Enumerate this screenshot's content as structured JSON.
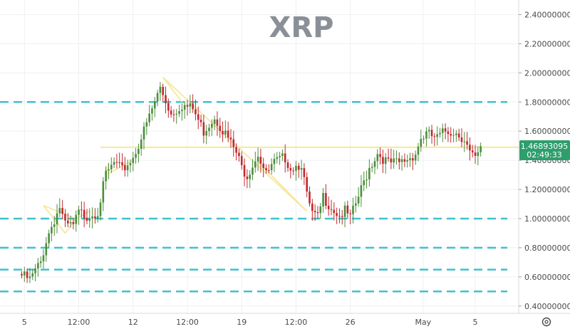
{
  "chart_data": {
    "type": "candlestick",
    "title": "XRP",
    "ylim": [
      0.35,
      2.5
    ],
    "y_ticks": [
      "2.40000000",
      "2.20000000",
      "2.00000000",
      "1.80000000",
      "1.60000000",
      "1.40000000",
      "1.20000000",
      "1.00000000",
      "0.80000000",
      "0.60000000",
      "0.40000000"
    ],
    "y_tick_values": [
      2.4,
      2.2,
      2.0,
      1.8,
      1.6,
      1.4,
      1.2,
      1.0,
      0.8,
      0.6,
      0.4
    ],
    "x_ticks": [
      {
        "label": "5",
        "t": 0.1
      },
      {
        "label": "12:00",
        "t": 1.1
      },
      {
        "label": "12",
        "t": 2.1
      },
      {
        "label": "12:00",
        "t": 3.1
      },
      {
        "label": "19",
        "t": 4.1
      },
      {
        "label": "12:00",
        "t": 5.1
      },
      {
        "label": "26",
        "t": 6.1
      },
      {
        "label": "May",
        "t": 7.44
      },
      {
        "label": "5",
        "t": 8.4
      }
    ],
    "x_range": [
      -0.35,
      9.2
    ],
    "current_price": {
      "label": "1.46893095",
      "countdown": "02:49:33",
      "value": 1.469
    },
    "horizontal_levels": [
      1.8,
      1.0,
      0.8,
      0.65,
      0.5
    ],
    "resistance_line": {
      "value": 1.49,
      "from_t": 1.5
    },
    "trendlines": [
      [
        [
          0.45,
          1.09
        ],
        [
          1.05,
          1.0
        ]
      ],
      [
        [
          0.45,
          1.09
        ],
        [
          0.85,
          0.9
        ]
      ],
      [
        [
          0.85,
          0.9
        ],
        [
          1.05,
          1.0
        ]
      ],
      [
        [
          1.05,
          1.0
        ],
        [
          1.3,
          1.05
        ]
      ],
      [
        [
          1.6,
          1.3
        ],
        [
          2.1,
          1.4
        ]
      ],
      [
        [
          1.6,
          1.3
        ],
        [
          1.65,
          1.38
        ]
      ],
      [
        [
          2.65,
          1.97
        ],
        [
          5.3,
          1.05
        ]
      ],
      [
        [
          2.65,
          1.97
        ],
        [
          3.0,
          1.8
        ]
      ],
      [
        [
          4.4,
          1.39
        ],
        [
          5.3,
          1.05
        ]
      ]
    ],
    "candle_anchors": [
      [
        0.0,
        0.62
      ],
      [
        0.2,
        0.58
      ],
      [
        0.4,
        0.7
      ],
      [
        0.5,
        0.85
      ],
      [
        0.6,
        0.95
      ],
      [
        0.75,
        1.08
      ],
      [
        0.85,
        0.95
      ],
      [
        1.0,
        0.95
      ],
      [
        1.1,
        1.04
      ],
      [
        1.25,
        1.02
      ],
      [
        1.45,
        1.05
      ],
      [
        1.6,
        1.3
      ],
      [
        1.75,
        1.38
      ],
      [
        1.9,
        1.33
      ],
      [
        2.1,
        1.42
      ],
      [
        2.3,
        1.6
      ],
      [
        2.5,
        1.8
      ],
      [
        2.6,
        1.9
      ],
      [
        2.8,
        1.72
      ],
      [
        3.0,
        1.78
      ],
      [
        3.2,
        1.75
      ],
      [
        3.4,
        1.6
      ],
      [
        3.6,
        1.7
      ],
      [
        3.85,
        1.55
      ],
      [
        4.0,
        1.45
      ],
      [
        4.1,
        1.35
      ],
      [
        4.2,
        1.3
      ],
      [
        4.4,
        1.45
      ],
      [
        4.55,
        1.3
      ],
      [
        4.7,
        1.38
      ],
      [
        4.9,
        1.42
      ],
      [
        5.0,
        1.35
      ],
      [
        5.2,
        1.38
      ],
      [
        5.3,
        1.15
      ],
      [
        5.4,
        1.03
      ],
      [
        5.5,
        1.0
      ],
      [
        5.6,
        1.15
      ],
      [
        5.75,
        1.08
      ],
      [
        5.9,
        1.02
      ],
      [
        6.0,
        1.05
      ],
      [
        6.1,
        1.0
      ],
      [
        6.3,
        1.2
      ],
      [
        6.45,
        1.35
      ],
      [
        6.6,
        1.45
      ],
      [
        6.8,
        1.38
      ],
      [
        7.0,
        1.38
      ],
      [
        7.2,
        1.42
      ],
      [
        7.3,
        1.45
      ],
      [
        7.4,
        1.55
      ],
      [
        7.5,
        1.58
      ],
      [
        7.7,
        1.55
      ],
      [
        7.85,
        1.6
      ],
      [
        8.0,
        1.6
      ],
      [
        8.2,
        1.55
      ],
      [
        8.3,
        1.45
      ],
      [
        8.4,
        1.4
      ],
      [
        8.5,
        1.47
      ]
    ],
    "colors": {
      "up": "#4b8e3a",
      "down": "#c1282d",
      "level": "#3fc1cf",
      "trend": "#f5e79e",
      "price_tag": "#2e9e6c"
    }
  },
  "toolbar": {
    "settings_icon": "gear-icon"
  }
}
